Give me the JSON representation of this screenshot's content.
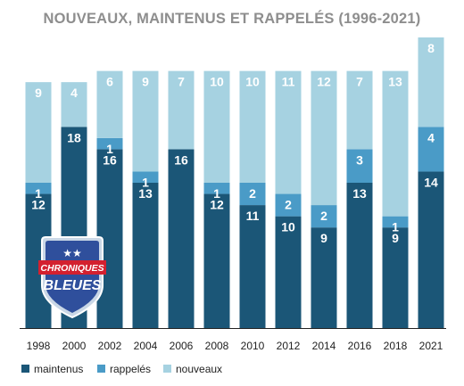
{
  "chart_data": {
    "type": "bar",
    "stacked": true,
    "title": "NOUVEAUX, MAINTENUS ET RAPPELÉS (1996-2021)",
    "categories": [
      "1998",
      "2000",
      "2002",
      "2004",
      "2006",
      "2008",
      "2010",
      "2012",
      "2014",
      "2016",
      "2018",
      "2021"
    ],
    "series": [
      {
        "name": "maintenus",
        "color": "#1b5677",
        "values": [
          12,
          18,
          16,
          13,
          16,
          12,
          11,
          10,
          9,
          13,
          9,
          14
        ]
      },
      {
        "name": "rappelés",
        "color": "#4a9bc7",
        "values": [
          1,
          0,
          1,
          1,
          0,
          1,
          2,
          2,
          2,
          3,
          1,
          4
        ]
      },
      {
        "name": "nouveaux",
        "color": "#a6d2e1",
        "values": [
          9,
          4,
          6,
          9,
          7,
          10,
          10,
          11,
          12,
          7,
          13,
          8
        ]
      }
    ],
    "ylim": [
      0,
      26
    ],
    "grid": false,
    "legend_position": "bottom-left",
    "xlabel": "",
    "ylabel": ""
  },
  "logo": {
    "line1": "CHRONIQUES",
    "line2": "BLEUES",
    "stars": "★★"
  }
}
